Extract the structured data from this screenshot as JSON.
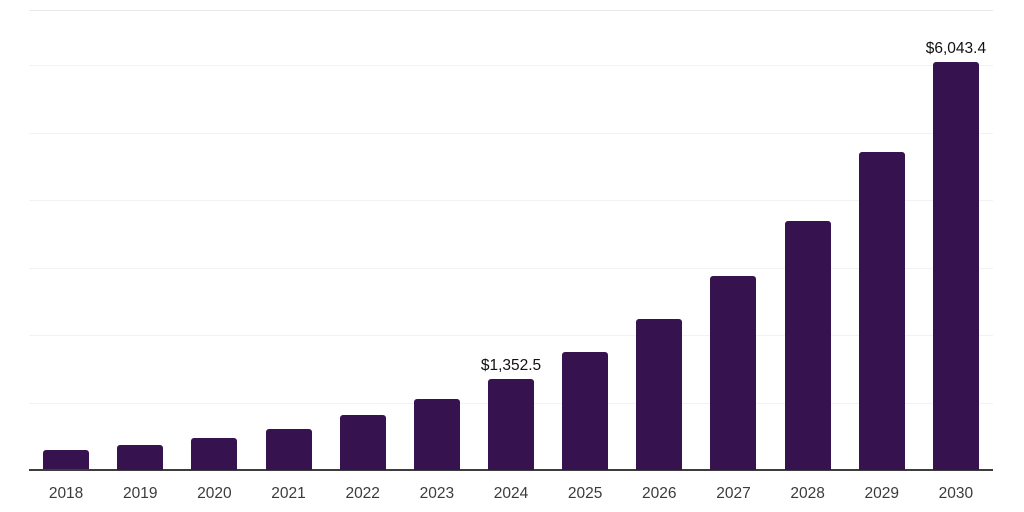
{
  "chart_data": {
    "type": "bar",
    "title": "",
    "xlabel": "",
    "ylabel": "",
    "categories": [
      "2018",
      "2019",
      "2020",
      "2021",
      "2022",
      "2023",
      "2024",
      "2025",
      "2026",
      "2027",
      "2028",
      "2029",
      "2030"
    ],
    "values": [
      295,
      370,
      475,
      605,
      815,
      1050,
      1352.5,
      1750,
      2240,
      2875,
      3690,
      4710,
      6043.4
    ],
    "value_labels": [
      {
        "index": 6,
        "text": "$1,352.5"
      },
      {
        "index": 12,
        "text": "$6,043.4"
      }
    ],
    "ylim": [
      0,
      6815
    ],
    "gridline_interval": 1000,
    "grid": true,
    "legend": false,
    "colors": {
      "bar": "#36124E",
      "gridline": "#F2F2F2",
      "top_border": "#E8E8E8",
      "axis_line": "#3D3D3D",
      "tick_label": "#3B3B3B",
      "value_label": "#111111",
      "background": "#FFFFFF"
    }
  }
}
